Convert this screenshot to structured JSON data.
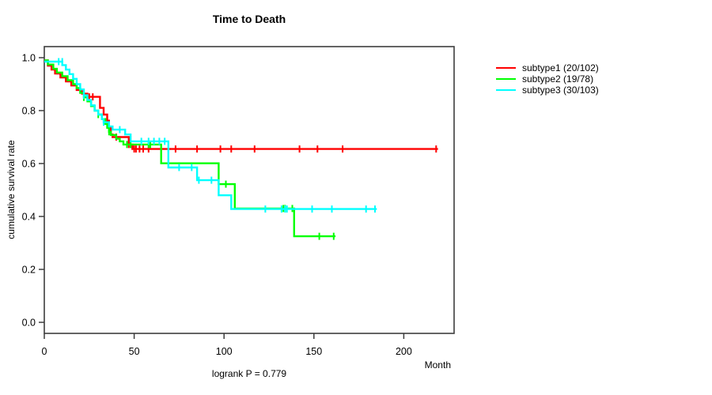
{
  "chart_data": {
    "type": "line",
    "subtype": "kaplan-meier-step",
    "title": "Time to Death",
    "xlabel": "Month",
    "ylabel": "cumulative survival rate",
    "annotation": "logrank P = 0.779",
    "xlim": [
      0,
      228
    ],
    "ylim": [
      0.0,
      1.0
    ],
    "grid": false,
    "legend_position": "right-outside",
    "x_tick_values": [
      0,
      50,
      100,
      150,
      200
    ],
    "x_tick_labels": [
      "0",
      "50",
      "100",
      "150",
      "200"
    ],
    "y_tick_values": [
      0.0,
      0.2,
      0.4,
      0.6,
      0.8,
      1.0
    ],
    "y_tick_labels": [
      "0.0",
      "0.2",
      "0.4",
      "0.6",
      "0.8",
      "1.0"
    ],
    "axis_color": "#3d3d3d",
    "series": [
      {
        "name": "subtype1 (20/102)",
        "color": "#ff0000",
        "end": 219,
        "points": [
          [
            0,
            0.99
          ],
          [
            2,
            0.97
          ],
          [
            4,
            0.955
          ],
          [
            6,
            0.94
          ],
          [
            9,
            0.925
          ],
          [
            12,
            0.91
          ],
          [
            15,
            0.895
          ],
          [
            18,
            0.878
          ],
          [
            21,
            0.864
          ],
          [
            24,
            0.852
          ],
          [
            31,
            0.81
          ],
          [
            33,
            0.785
          ],
          [
            35,
            0.762
          ],
          [
            36,
            0.735
          ],
          [
            37,
            0.71
          ],
          [
            38,
            0.7
          ],
          [
            47,
            0.672
          ],
          [
            49,
            0.655
          ]
        ],
        "censors": [
          [
            25,
            0.852
          ],
          [
            27,
            0.852
          ],
          [
            40,
            0.7
          ],
          [
            47,
            0.672
          ],
          [
            50,
            0.655
          ],
          [
            51,
            0.655
          ],
          [
            53,
            0.655
          ],
          [
            55,
            0.655
          ],
          [
            58,
            0.655
          ],
          [
            73,
            0.655
          ],
          [
            85,
            0.655
          ],
          [
            98,
            0.655
          ],
          [
            104,
            0.655
          ],
          [
            117,
            0.655
          ],
          [
            142,
            0.655
          ],
          [
            152,
            0.655
          ],
          [
            166,
            0.655
          ],
          [
            218,
            0.655
          ]
        ]
      },
      {
        "name": "subtype2 (19/78)",
        "color": "#00ff00",
        "end": 162,
        "points": [
          [
            0,
            0.99
          ],
          [
            2,
            0.974
          ],
          [
            5,
            0.958
          ],
          [
            7,
            0.944
          ],
          [
            10,
            0.93
          ],
          [
            13,
            0.915
          ],
          [
            16,
            0.9
          ],
          [
            18,
            0.885
          ],
          [
            20,
            0.867
          ],
          [
            22,
            0.85
          ],
          [
            24,
            0.835
          ],
          [
            26,
            0.817
          ],
          [
            28,
            0.8
          ],
          [
            30,
            0.785
          ],
          [
            32,
            0.768
          ],
          [
            34,
            0.75
          ],
          [
            35,
            0.735
          ],
          [
            36,
            0.72
          ],
          [
            37,
            0.708
          ],
          [
            40,
            0.694
          ],
          [
            42,
            0.684
          ],
          [
            44,
            0.672
          ],
          [
            65,
            0.601
          ],
          [
            97,
            0.522
          ],
          [
            106,
            0.43
          ],
          [
            139,
            0.325
          ]
        ],
        "censors": [
          [
            22,
            0.85
          ],
          [
            30,
            0.785
          ],
          [
            36,
            0.72
          ],
          [
            46,
            0.672
          ],
          [
            48,
            0.672
          ],
          [
            58,
            0.672
          ],
          [
            59,
            0.672
          ],
          [
            101,
            0.522
          ],
          [
            133,
            0.43
          ],
          [
            134,
            0.43
          ],
          [
            138,
            0.43
          ],
          [
            153,
            0.325
          ],
          [
            161,
            0.325
          ]
        ]
      },
      {
        "name": "subtype3 (30/103)",
        "color": "#00ffff",
        "end": 185,
        "points": [
          [
            0,
            0.985
          ],
          [
            10,
            0.972
          ],
          [
            12,
            0.955
          ],
          [
            14,
            0.938
          ],
          [
            16,
            0.92
          ],
          [
            18,
            0.9
          ],
          [
            20,
            0.88
          ],
          [
            22,
            0.858
          ],
          [
            24,
            0.84
          ],
          [
            26,
            0.82
          ],
          [
            28,
            0.8
          ],
          [
            30,
            0.785
          ],
          [
            32,
            0.768
          ],
          [
            33,
            0.756
          ],
          [
            36,
            0.74
          ],
          [
            38,
            0.728
          ],
          [
            45,
            0.71
          ],
          [
            48,
            0.684
          ],
          [
            69,
            0.585
          ],
          [
            85,
            0.537
          ],
          [
            97,
            0.48
          ],
          [
            104,
            0.428
          ]
        ],
        "censors": [
          [
            8,
            0.985
          ],
          [
            10,
            0.985
          ],
          [
            22,
            0.858
          ],
          [
            33,
            0.756
          ],
          [
            42,
            0.728
          ],
          [
            54,
            0.684
          ],
          [
            58,
            0.684
          ],
          [
            61,
            0.684
          ],
          [
            64,
            0.684
          ],
          [
            67,
            0.684
          ],
          [
            75,
            0.585
          ],
          [
            82,
            0.585
          ],
          [
            86,
            0.537
          ],
          [
            93,
            0.537
          ],
          [
            123,
            0.428
          ],
          [
            132,
            0.428
          ],
          [
            134,
            0.428
          ],
          [
            135,
            0.428
          ],
          [
            149,
            0.428
          ],
          [
            160,
            0.428
          ],
          [
            179,
            0.428
          ],
          [
            184,
            0.428
          ]
        ]
      }
    ]
  }
}
